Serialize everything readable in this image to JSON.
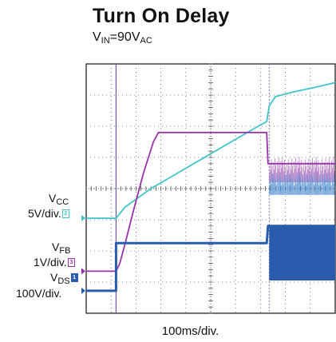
{
  "chart_data": {
    "type": "line",
    "title": "Turn On Delay",
    "subtitle": {
      "base": "V",
      "sub1": "IN",
      "mid": "=90V",
      "sub2": "AC"
    },
    "xlabel": "100ms/div.",
    "grid": true,
    "x_divisions": 10,
    "y_divisions": 8,
    "x_unit": "div",
    "y_unit": "div",
    "channels": [
      {
        "marker": "2",
        "label": "V",
        "label_sub": "CC",
        "scale": "5V/div.",
        "color": "#40c4cc",
        "points": [
          [
            0,
            3.05
          ],
          [
            1.2,
            3.05
          ],
          [
            1.55,
            3.4
          ],
          [
            2.6,
            4.0
          ],
          [
            4,
            4.65
          ],
          [
            5.5,
            5.35
          ],
          [
            6.8,
            5.95
          ],
          [
            7.25,
            6.15
          ],
          [
            7.35,
            6.65
          ],
          [
            7.6,
            6.95
          ],
          [
            8.3,
            7.1
          ],
          [
            9.2,
            7.25
          ],
          [
            10,
            7.4
          ]
        ]
      },
      {
        "marker": "3",
        "label": "V",
        "label_sub": "FB",
        "scale": "1V/div.",
        "color": "#9933aa",
        "points": [
          [
            0,
            1.35
          ],
          [
            1.2,
            1.35
          ],
          [
            1.35,
            1.6
          ],
          [
            1.55,
            2.2
          ],
          [
            1.9,
            3.3
          ],
          [
            2.3,
            4.5
          ],
          [
            2.7,
            5.5
          ],
          [
            2.9,
            5.8
          ],
          [
            7.25,
            5.8
          ],
          [
            7.3,
            4.8
          ],
          [
            10,
            4.8
          ]
        ]
      },
      {
        "marker": "1",
        "label": "V",
        "label_sub": "DS",
        "scale": "100V/div.",
        "color": "#2a5cad",
        "points": [
          [
            0,
            0.72
          ],
          [
            1.2,
            0.72
          ],
          [
            1.2,
            2.25
          ],
          [
            7.25,
            2.25
          ],
          [
            7.3,
            2.8
          ],
          [
            10,
            2.8
          ]
        ]
      }
    ],
    "cursors_x": [
      1.2,
      7.35
    ]
  }
}
